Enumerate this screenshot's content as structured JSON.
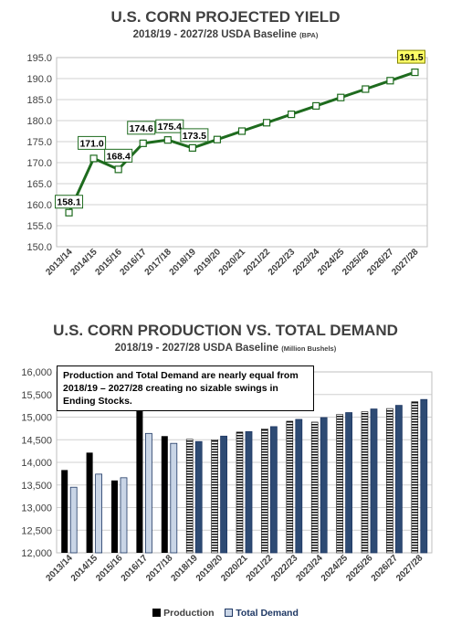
{
  "chart_data": [
    {
      "type": "line",
      "title": "U.S. CORN PROJECTED YIELD",
      "subtitle": "2018/19 - 2027/28 USDA Baseline",
      "unit": "(BPA)",
      "ylim": [
        150,
        195
      ],
      "yticks": [
        "150.0",
        "155.0",
        "160.0",
        "165.0",
        "170.0",
        "175.0",
        "180.0",
        "185.0",
        "190.0",
        "195.0"
      ],
      "categories": [
        "2013/14",
        "2014/15",
        "2015/16",
        "2016/17",
        "2017/18",
        "2018/19",
        "2019/20",
        "2020/21",
        "2021/22",
        "2022/23",
        "2023/24",
        "2024/25",
        "2025/26",
        "2026/27",
        "2027/28"
      ],
      "values": [
        158.1,
        171.0,
        168.4,
        174.6,
        175.4,
        173.5,
        175.5,
        177.5,
        179.5,
        181.5,
        183.5,
        185.5,
        187.5,
        189.5,
        191.5
      ],
      "data_labels": [
        {
          "index": 0,
          "text": "158.1"
        },
        {
          "index": 1,
          "text": "171.0"
        },
        {
          "index": 2,
          "text": "168.4"
        },
        {
          "index": 3,
          "text": "174.6"
        },
        {
          "index": 4,
          "text": "175.4"
        },
        {
          "index": 5,
          "text": "173.5"
        },
        {
          "index": 14,
          "text": "191.5"
        }
      ],
      "colors": {
        "line": "#1e6b1e",
        "marker_fill": "#ffffff",
        "highlight": "#ffff66"
      },
      "grid": true
    },
    {
      "type": "bar",
      "title": "U.S. CORN PRODUCTION VS. TOTAL DEMAND",
      "subtitle": "2018/19 - 2027/28 USDA Baseline",
      "unit": "(Million Bushels)",
      "ylim": [
        12000,
        16000
      ],
      "yticks": [
        "12,000",
        "12,500",
        "13,000",
        "13,500",
        "14,000",
        "14,500",
        "15,000",
        "15,500",
        "16,000"
      ],
      "categories": [
        "2013/14",
        "2014/15",
        "2015/16",
        "2016/17",
        "2017/18",
        "2018/19",
        "2019/20",
        "2020/21",
        "2021/22",
        "2022/23",
        "2023/24",
        "2024/25",
        "2025/26",
        "2026/27",
        "2027/28"
      ],
      "series": [
        {
          "name": "Production",
          "values": [
            13830,
            14215,
            13600,
            15150,
            14580,
            14510,
            14500,
            14670,
            14740,
            14910,
            14890,
            15060,
            15120,
            15190,
            15340
          ]
        },
        {
          "name": "Total Demand",
          "values": [
            13450,
            13740,
            13660,
            14640,
            14420,
            14460,
            14580,
            14680,
            14790,
            14950,
            14990,
            15100,
            15180,
            15260,
            15390
          ]
        }
      ],
      "annotation": "Production and Total Demand are nearly equal from 2018/19 – 2027/28 creating no sizable swings in Ending Stocks.",
      "colors": {
        "production": "#000000",
        "demand": "#c9d5e6",
        "demand_outline": "#1f3864",
        "projected_demand": "#2e4b74"
      },
      "grid": true
    }
  ]
}
